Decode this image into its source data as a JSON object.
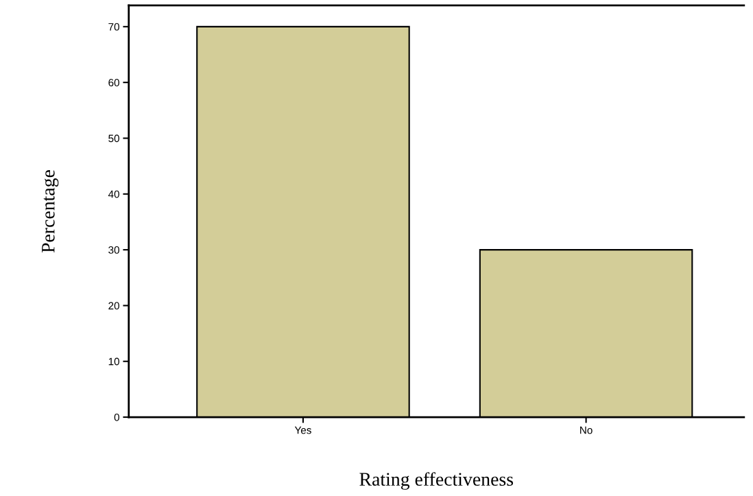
{
  "chart_data": {
    "type": "bar",
    "xlabel": "Rating effectiveness",
    "ylabel": "Percentage",
    "categories": [
      "Yes",
      "No"
    ],
    "values": [
      70,
      30
    ],
    "color": "#d3cd98",
    "ylim": [
      0,
      73.8
    ],
    "yticks": [
      0,
      10,
      20,
      30,
      40,
      50,
      60,
      70
    ]
  }
}
